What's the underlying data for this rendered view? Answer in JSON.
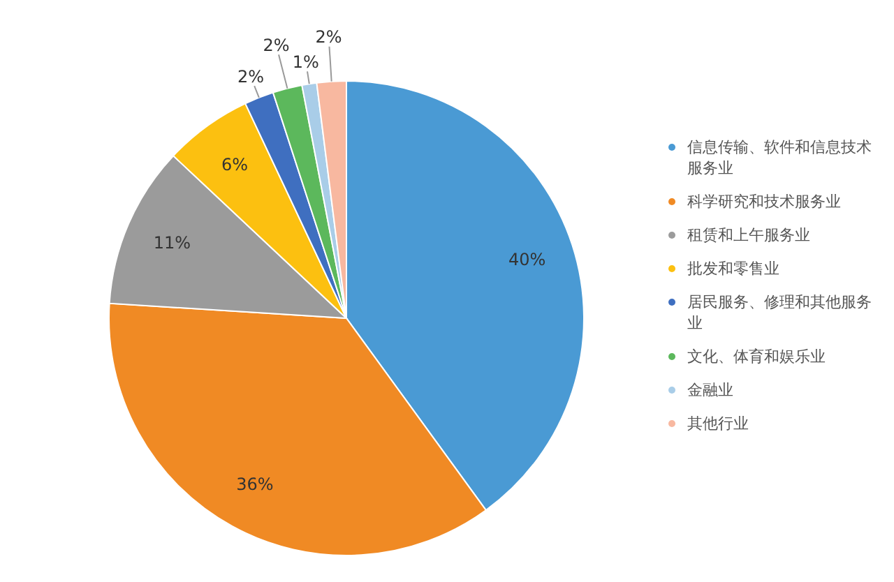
{
  "chart_data": {
    "type": "pie",
    "categories": [
      "信息传输、软件和信息技术服务业",
      "科学研究和技术服务业",
      "租赁和上午服务业",
      "批发和零售业",
      "居民服务、修理和其他服务业",
      "文化、体育和娱乐业",
      "金融业",
      "其他行业"
    ],
    "values": [
      40,
      36,
      11,
      6,
      2,
      2,
      1,
      2
    ],
    "colors": [
      "#4a9ad4",
      "#f08a24",
      "#9b9b9b",
      "#fcc010",
      "#3f6fc0",
      "#5cb85c",
      "#a9cde8",
      "#f8b8a0"
    ],
    "value_labels": [
      "40%",
      "36%",
      "11%",
      "6%",
      "2%",
      "2%",
      "1%",
      "2%"
    ],
    "legend": "right"
  }
}
